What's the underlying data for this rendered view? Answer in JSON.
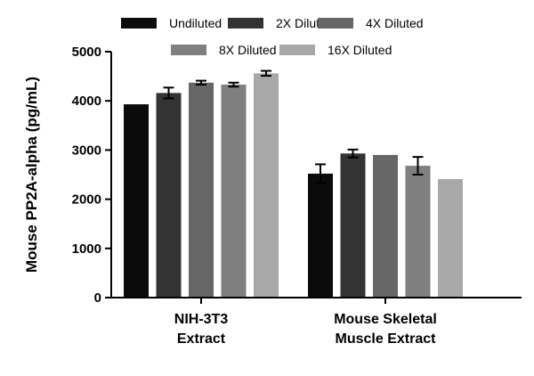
{
  "chart_data": {
    "type": "bar",
    "ylabel": "Mouse PP2A-alpha (pg/mL)",
    "xlabel": "",
    "ylim": [
      0,
      5000
    ],
    "yticks": [
      0,
      1000,
      2000,
      3000,
      4000,
      5000
    ],
    "categories": [
      [
        "NIH-3T3",
        "Extract"
      ],
      [
        "Mouse Skeletal",
        "Muscle Extract"
      ]
    ],
    "legend_position": "top",
    "series": [
      {
        "name": "Undiluted",
        "color": "#0b0b0b",
        "values": [
          3930,
          2520
        ],
        "errors": [
          0,
          190
        ]
      },
      {
        "name": "2X Diluted",
        "color": "#333333",
        "values": [
          4160,
          2930
        ],
        "errors": [
          110,
          80
        ]
      },
      {
        "name": "4X Diluted",
        "color": "#666666",
        "values": [
          4370,
          2900
        ],
        "errors": [
          40,
          0
        ]
      },
      {
        "name": "8X Diluted",
        "color": "#7f7f7f",
        "values": [
          4330,
          2680
        ],
        "errors": [
          40,
          180
        ]
      },
      {
        "name": "16X Diluted",
        "color": "#a8a8a8",
        "values": [
          4560,
          2410
        ],
        "errors": [
          50,
          0
        ]
      }
    ]
  }
}
